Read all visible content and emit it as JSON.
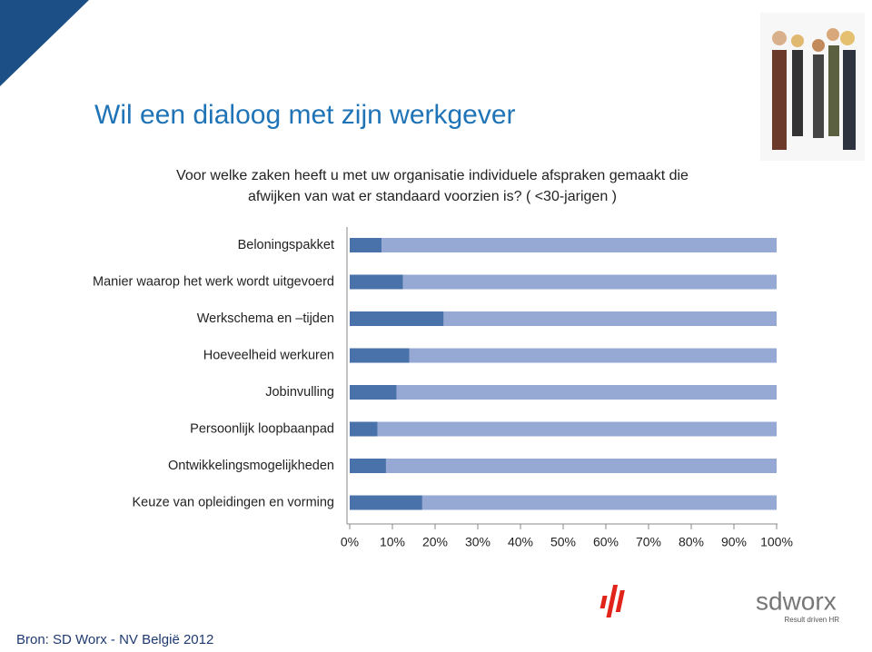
{
  "header": {
    "title": "Wil een dialoog met zijn werkgever"
  },
  "chart_data": {
    "type": "stacked-bar-horizontal",
    "subtitle": [
      "Voor welke zaken heeft u met uw organisatie individuele afspraken gemaakt die",
      "afwijken van wat er standaard voorzien is? ( <30-jarigen )"
    ],
    "categories": [
      "Beloningspakket",
      "Manier waarop het werk wordt uitgevoerd",
      "Werkschema en –tijden",
      "Hoeveelheid werkuren",
      "Jobinvulling",
      "Persoonlijk loopbaanpad",
      "Ontwikkelingsmogelijkheden",
      "Keuze van opleidingen en vorming"
    ],
    "series": [
      {
        "color": "#4a72aa",
        "values": [
          7.5,
          12.5,
          22,
          14,
          11,
          6.5,
          8.5,
          17
        ]
      },
      {
        "color": "#95a9d4",
        "values": [
          92.5,
          87.5,
          78,
          86,
          89,
          93.5,
          91.5,
          83
        ]
      }
    ],
    "xlim": [
      0,
      100
    ],
    "xticks": [
      {
        "value": 0,
        "label": "0%"
      },
      {
        "value": 10,
        "label": "10%"
      },
      {
        "value": 20,
        "label": "20%"
      },
      {
        "value": 30,
        "label": "30%"
      },
      {
        "value": 40,
        "label": "40%"
      },
      {
        "value": 50,
        "label": "50%"
      },
      {
        "value": 60,
        "label": "60%"
      },
      {
        "value": 70,
        "label": "70%"
      },
      {
        "value": 80,
        "label": "80%"
      },
      {
        "value": 90,
        "label": "90%"
      },
      {
        "value": 100,
        "label": "100%"
      }
    ],
    "grid": false
  },
  "footer": {
    "source": "Bron: SD Worx - NV België 2012",
    "logo": "sdworx",
    "tagline": "Result driven HR"
  }
}
